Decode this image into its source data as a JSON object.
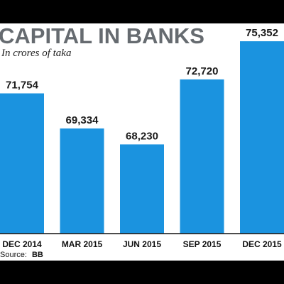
{
  "chart_data": {
    "type": "bar",
    "title": "CAPITAL IN BANKS",
    "subtitle": "In crores of taka",
    "categories": [
      "DEC 2014",
      "MAR 2015",
      "JUN 2015",
      "SEP 2015",
      "DEC 2015"
    ],
    "values": [
      71754,
      69334,
      68230,
      72720,
      75352
    ],
    "value_labels": [
      "71,754",
      "69,334",
      "68,230",
      "72,720",
      "75,352"
    ],
    "source_label": "Source:",
    "source_value": "BB",
    "colors": {
      "bar": "#1b93df",
      "baseline": "#111111",
      "title": "#666b70"
    },
    "grid": false,
    "legend": "none"
  }
}
